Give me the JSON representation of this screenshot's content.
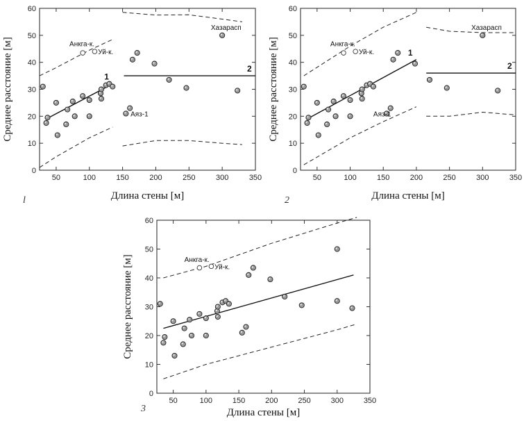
{
  "chart_data": [
    {
      "type": "scatter",
      "panel_label": "l",
      "xlabel": "Длина стены  [м]",
      "ylabel": "Среднее расстояние  [м]",
      "xlim": [
        25,
        350
      ],
      "ylim": [
        0,
        60
      ],
      "xticks": [
        50,
        100,
        150,
        200,
        250,
        300,
        350
      ],
      "yticks": [
        0,
        10,
        20,
        30,
        40,
        50,
        60
      ],
      "points": [
        {
          "x": 30,
          "y": 31
        },
        {
          "x": 35,
          "y": 17.5
        },
        {
          "x": 37,
          "y": 19.5
        },
        {
          "x": 50,
          "y": 25
        },
        {
          "x": 52,
          "y": 13
        },
        {
          "x": 65,
          "y": 17
        },
        {
          "x": 67,
          "y": 22.5
        },
        {
          "x": 75,
          "y": 25.5
        },
        {
          "x": 78,
          "y": 20
        },
        {
          "x": 90,
          "y": 27.5
        },
        {
          "x": 100,
          "y": 26
        },
        {
          "x": 100,
          "y": 20
        },
        {
          "x": 117,
          "y": 28.5
        },
        {
          "x": 118,
          "y": 30
        },
        {
          "x": 118,
          "y": 26.5
        },
        {
          "x": 125,
          "y": 31.5
        },
        {
          "x": 130,
          "y": 32
        },
        {
          "x": 135,
          "y": 31
        },
        {
          "x": 155,
          "y": 21
        },
        {
          "x": 161,
          "y": 23
        },
        {
          "x": 165,
          "y": 41
        },
        {
          "x": 172,
          "y": 43.5
        },
        {
          "x": 198,
          "y": 39.5
        },
        {
          "x": 220,
          "y": 33.5
        },
        {
          "x": 246,
          "y": 30.5
        },
        {
          "x": 300,
          "y": 50
        },
        {
          "x": 323,
          "y": 29.5
        }
      ],
      "open_points": [
        {
          "x": 90,
          "y": 43.5
        },
        {
          "x": 108,
          "y": 44
        }
      ],
      "annotations": [
        {
          "text": "Анкга-к.",
          "x": 70,
          "y": 46
        },
        {
          "text": "Уй-к.",
          "x": 113,
          "y": 43
        },
        {
          "text": "Хазарасп",
          "x": 283,
          "y": 52
        },
        {
          "text": "Аяз-1",
          "x": 162,
          "y": 20
        }
      ],
      "lines": [
        {
          "label": "1",
          "x": [
            35,
            135
          ],
          "y": [
            19,
            32
          ],
          "style": "solid"
        },
        {
          "label": "2",
          "x": [
            152,
            350
          ],
          "y": [
            35,
            35
          ],
          "style": "solid"
        }
      ],
      "dashed": [
        [
          [
            25,
            35
          ],
          [
            50,
            38
          ],
          [
            100,
            44.5
          ],
          [
            135,
            48.5
          ]
        ],
        [
          [
            25,
            1
          ],
          [
            50,
            5
          ],
          [
            100,
            12
          ],
          [
            135,
            16
          ]
        ],
        [
          [
            150,
            58.5
          ],
          [
            200,
            57.5
          ],
          [
            250,
            57.6
          ],
          [
            300,
            56
          ],
          [
            330,
            55
          ]
        ],
        [
          [
            150,
            9
          ],
          [
            200,
            11
          ],
          [
            250,
            11
          ],
          [
            300,
            10
          ],
          [
            330,
            9.5
          ]
        ]
      ]
    },
    {
      "type": "scatter",
      "panel_label": "2",
      "xlabel": "Длина стены  [м]",
      "ylabel": "Среднее расстояние  [м]",
      "xlim": [
        25,
        350
      ],
      "ylim": [
        0,
        60
      ],
      "xticks": [
        50,
        100,
        150,
        200,
        250,
        300,
        350
      ],
      "yticks": [
        0,
        10,
        20,
        30,
        40,
        50,
        60
      ],
      "points": [
        {
          "x": 30,
          "y": 31
        },
        {
          "x": 35,
          "y": 17.5
        },
        {
          "x": 37,
          "y": 19.5
        },
        {
          "x": 50,
          "y": 25
        },
        {
          "x": 52,
          "y": 13
        },
        {
          "x": 65,
          "y": 17
        },
        {
          "x": 67,
          "y": 22.5
        },
        {
          "x": 75,
          "y": 25.5
        },
        {
          "x": 78,
          "y": 20
        },
        {
          "x": 90,
          "y": 27.5
        },
        {
          "x": 100,
          "y": 26
        },
        {
          "x": 100,
          "y": 20
        },
        {
          "x": 117,
          "y": 28.5
        },
        {
          "x": 118,
          "y": 30
        },
        {
          "x": 118,
          "y": 26.5
        },
        {
          "x": 125,
          "y": 31.5
        },
        {
          "x": 130,
          "y": 32
        },
        {
          "x": 135,
          "y": 31
        },
        {
          "x": 155,
          "y": 21
        },
        {
          "x": 161,
          "y": 23
        },
        {
          "x": 165,
          "y": 41
        },
        {
          "x": 172,
          "y": 43.5
        },
        {
          "x": 198,
          "y": 39.5
        },
        {
          "x": 220,
          "y": 33.5
        },
        {
          "x": 246,
          "y": 30.5
        },
        {
          "x": 300,
          "y": 50
        },
        {
          "x": 323,
          "y": 29.5
        }
      ],
      "open_points": [
        {
          "x": 90,
          "y": 43.5
        },
        {
          "x": 108,
          "y": 44
        }
      ],
      "annotations": [
        {
          "text": "Анкга-к.",
          "x": 70,
          "y": 46
        },
        {
          "text": "Уй-к.",
          "x": 113,
          "y": 43
        },
        {
          "text": "Хазарасп",
          "x": 283,
          "y": 52
        },
        {
          "text": "Аяз-1",
          "x": 135,
          "y": 20
        }
      ],
      "lines": [
        {
          "label": "1",
          "x": [
            35,
            200
          ],
          "y": [
            19,
            41
          ],
          "style": "solid"
        },
        {
          "label": "2",
          "x": [
            215,
            350
          ],
          "y": [
            36,
            36
          ],
          "style": "solid"
        }
      ],
      "dashed": [
        [
          [
            30,
            35
          ],
          [
            100,
            46
          ],
          [
            150,
            53
          ],
          [
            200,
            58.5
          ]
        ],
        [
          [
            30,
            2
          ],
          [
            100,
            12
          ],
          [
            150,
            18
          ],
          [
            200,
            23.5
          ]
        ],
        [
          [
            215,
            53
          ],
          [
            250,
            51.5
          ],
          [
            300,
            51
          ],
          [
            350,
            51
          ]
        ],
        [
          [
            215,
            20
          ],
          [
            250,
            20
          ],
          [
            300,
            21.5
          ],
          [
            350,
            20.5
          ]
        ]
      ]
    },
    {
      "type": "scatter",
      "panel_label": "3",
      "xlabel": "Длина стены  [м]",
      "ylabel": "Среднее расстояние  [м]",
      "xlim": [
        25,
        350
      ],
      "ylim": [
        0,
        60
      ],
      "xticks": [
        50,
        100,
        150,
        200,
        250,
        300,
        350
      ],
      "yticks": [
        0,
        10,
        20,
        30,
        40,
        50,
        60
      ],
      "points": [
        {
          "x": 30,
          "y": 31
        },
        {
          "x": 35,
          "y": 17.5
        },
        {
          "x": 37,
          "y": 19.5
        },
        {
          "x": 50,
          "y": 25
        },
        {
          "x": 52,
          "y": 13
        },
        {
          "x": 65,
          "y": 17
        },
        {
          "x": 67,
          "y": 22.5
        },
        {
          "x": 75,
          "y": 25.5
        },
        {
          "x": 78,
          "y": 20
        },
        {
          "x": 90,
          "y": 27.5
        },
        {
          "x": 100,
          "y": 26
        },
        {
          "x": 100,
          "y": 20
        },
        {
          "x": 117,
          "y": 28.5
        },
        {
          "x": 118,
          "y": 30
        },
        {
          "x": 118,
          "y": 26.5
        },
        {
          "x": 125,
          "y": 31.5
        },
        {
          "x": 130,
          "y": 32
        },
        {
          "x": 135,
          "y": 31
        },
        {
          "x": 155,
          "y": 21
        },
        {
          "x": 161,
          "y": 23
        },
        {
          "x": 165,
          "y": 41
        },
        {
          "x": 172,
          "y": 43.5
        },
        {
          "x": 198,
          "y": 39.5
        },
        {
          "x": 220,
          "y": 33.5
        },
        {
          "x": 246,
          "y": 30.5
        },
        {
          "x": 300,
          "y": 50
        },
        {
          "x": 300,
          "y": 32
        },
        {
          "x": 323,
          "y": 29.5
        }
      ],
      "open_points": [
        {
          "x": 90,
          "y": 43.5
        },
        {
          "x": 108,
          "y": 44
        }
      ],
      "annotations": [
        {
          "text": "Анкга-к.",
          "x": 67,
          "y": 45.5
        },
        {
          "text": "Уй-к.",
          "x": 113,
          "y": 43
        }
      ],
      "lines": [
        {
          "x": [
            35,
            325
          ],
          "y": [
            22.5,
            41
          ],
          "style": "solid"
        }
      ],
      "dashed": [
        [
          [
            35,
            40
          ],
          [
            100,
            44
          ],
          [
            200,
            52
          ],
          [
            300,
            59
          ],
          [
            330,
            61
          ]
        ],
        [
          [
            35,
            5
          ],
          [
            100,
            10
          ],
          [
            200,
            16
          ],
          [
            300,
            22
          ],
          [
            330,
            24
          ]
        ]
      ]
    }
  ]
}
